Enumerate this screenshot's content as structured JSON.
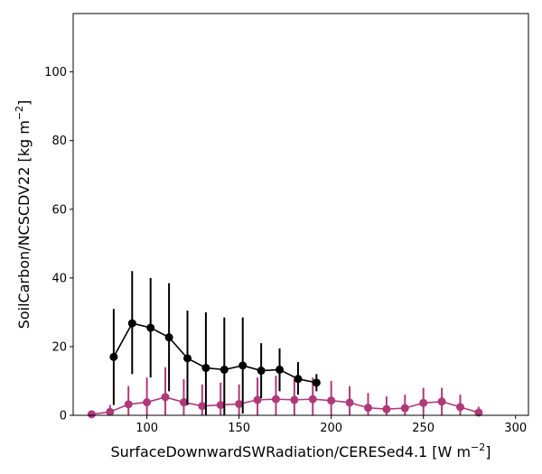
{
  "chart_data": {
    "type": "line",
    "xlabel": "SurfaceDownwardSWRadiation/CERESed4.1 [W m",
    "xlabel_sup": "−2",
    "xlabel_end": "]",
    "ylabel": "SoilCarbon/NCSCDV22 [kg m",
    "ylabel_sup": "−2",
    "ylabel_end": "]",
    "xlim": [
      60,
      307
    ],
    "ylim": [
      0,
      117
    ],
    "xticks": [
      100,
      150,
      200,
      250,
      300
    ],
    "yticks": [
      0,
      20,
      40,
      60,
      80,
      100
    ],
    "grid": false,
    "series": [
      {
        "color": "#000000",
        "points": [
          {
            "x": 82,
            "y": 17.0,
            "lo": 3.0,
            "hi": 31.0
          },
          {
            "x": 92,
            "y": 26.8,
            "lo": 12.0,
            "hi": 42.0
          },
          {
            "x": 102,
            "y": 25.5,
            "lo": 11.0,
            "hi": 40.0
          },
          {
            "x": 112,
            "y": 22.7,
            "lo": 7.0,
            "hi": 38.5
          },
          {
            "x": 122,
            "y": 16.6,
            "lo": 3.0,
            "hi": 30.5
          },
          {
            "x": 132,
            "y": 13.8,
            "lo": 0.0,
            "hi": 30.0
          },
          {
            "x": 142,
            "y": 13.3,
            "lo": 0.0,
            "hi": 28.5
          },
          {
            "x": 152,
            "y": 14.5,
            "lo": 0.5,
            "hi": 28.5
          },
          {
            "x": 162,
            "y": 13.0,
            "lo": 5.0,
            "hi": 21.0
          },
          {
            "x": 172,
            "y": 13.3,
            "lo": 7.0,
            "hi": 19.5
          },
          {
            "x": 182,
            "y": 10.6,
            "lo": 6.0,
            "hi": 15.5
          },
          {
            "x": 192,
            "y": 9.5,
            "lo": 7.0,
            "hi": 12.0
          }
        ]
      },
      {
        "color": "#b0397a",
        "points": [
          {
            "x": 70,
            "y": 0.3,
            "lo": 0.0,
            "hi": 0.6
          },
          {
            "x": 80,
            "y": 1.0,
            "lo": 0.0,
            "hi": 3.0
          },
          {
            "x": 90,
            "y": 3.2,
            "lo": 0.0,
            "hi": 8.5
          },
          {
            "x": 100,
            "y": 3.8,
            "lo": 0.0,
            "hi": 11.0
          },
          {
            "x": 110,
            "y": 5.3,
            "lo": 0.0,
            "hi": 14.0
          },
          {
            "x": 120,
            "y": 3.8,
            "lo": 0.0,
            "hi": 10.5
          },
          {
            "x": 130,
            "y": 2.7,
            "lo": 0.0,
            "hi": 9.0
          },
          {
            "x": 140,
            "y": 3.0,
            "lo": 0.0,
            "hi": 9.5
          },
          {
            "x": 150,
            "y": 3.3,
            "lo": 0.0,
            "hi": 9.0
          },
          {
            "x": 160,
            "y": 4.5,
            "lo": 0.0,
            "hi": 11.0
          },
          {
            "x": 170,
            "y": 4.7,
            "lo": 0.0,
            "hi": 11.5
          },
          {
            "x": 180,
            "y": 4.5,
            "lo": 0.0,
            "hi": 10.5
          },
          {
            "x": 190,
            "y": 4.7,
            "lo": 0.0,
            "hi": 11.0
          },
          {
            "x": 200,
            "y": 4.3,
            "lo": 0.0,
            "hi": 10.0
          },
          {
            "x": 210,
            "y": 3.7,
            "lo": 0.0,
            "hi": 8.5
          },
          {
            "x": 220,
            "y": 2.2,
            "lo": 0.0,
            "hi": 6.5
          },
          {
            "x": 230,
            "y": 1.8,
            "lo": 0.0,
            "hi": 5.5
          },
          {
            "x": 240,
            "y": 2.1,
            "lo": 0.0,
            "hi": 6.0
          },
          {
            "x": 250,
            "y": 3.6,
            "lo": 0.0,
            "hi": 8.0
          },
          {
            "x": 260,
            "y": 4.0,
            "lo": 0.0,
            "hi": 8.0
          },
          {
            "x": 270,
            "y": 2.4,
            "lo": 0.0,
            "hi": 6.0
          },
          {
            "x": 280,
            "y": 0.8,
            "lo": 0.0,
            "hi": 2.5
          }
        ]
      }
    ]
  }
}
